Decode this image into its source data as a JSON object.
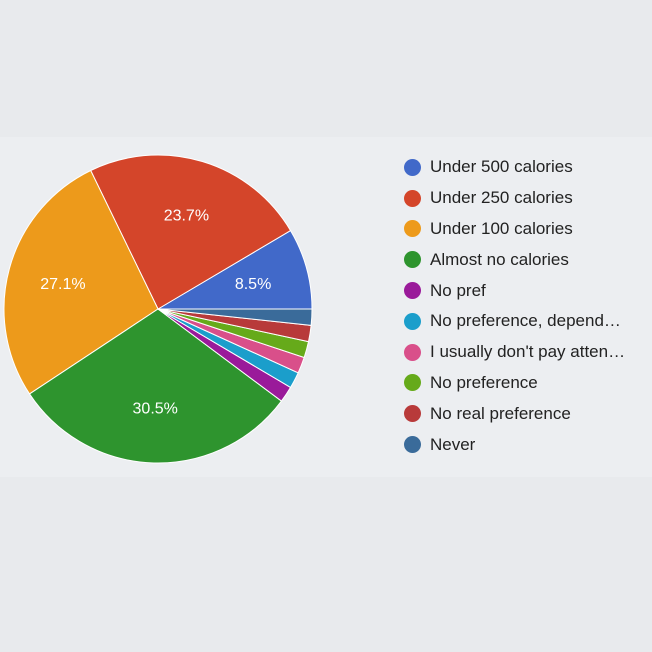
{
  "chart_data": {
    "type": "pie",
    "series": [
      {
        "name": "Under 500 calories",
        "value": 8.5,
        "label": "8.5%",
        "color": "#4169c9"
      },
      {
        "name": "Under 250 calories",
        "value": 23.7,
        "label": "23.7%",
        "color": "#d4452a"
      },
      {
        "name": "Under 100 calories",
        "value": 27.1,
        "label": "27.1%",
        "color": "#ed9a1b"
      },
      {
        "name": "Almost no calories",
        "value": 30.5,
        "label": "30.5%",
        "color": "#2e942e"
      },
      {
        "name": "No pref",
        "value": 1.7,
        "label": "",
        "color": "#9a1a9a"
      },
      {
        "name": "No preference, depend…",
        "value": 1.7,
        "label": "",
        "color": "#1b9ecb"
      },
      {
        "name": "I usually don't pay atten…",
        "value": 1.7,
        "label": "",
        "color": "#d94f8a"
      },
      {
        "name": "No preference",
        "value": 1.7,
        "label": "",
        "color": "#66aa1a"
      },
      {
        "name": "No real preference",
        "value": 1.7,
        "label": "",
        "color": "#b83a3a"
      },
      {
        "name": "Never",
        "value": 1.7,
        "label": "",
        "color": "#3a6b9a"
      }
    ],
    "start_angle_deg": 90,
    "direction": "counterclockwise",
    "legend_position": "right"
  }
}
